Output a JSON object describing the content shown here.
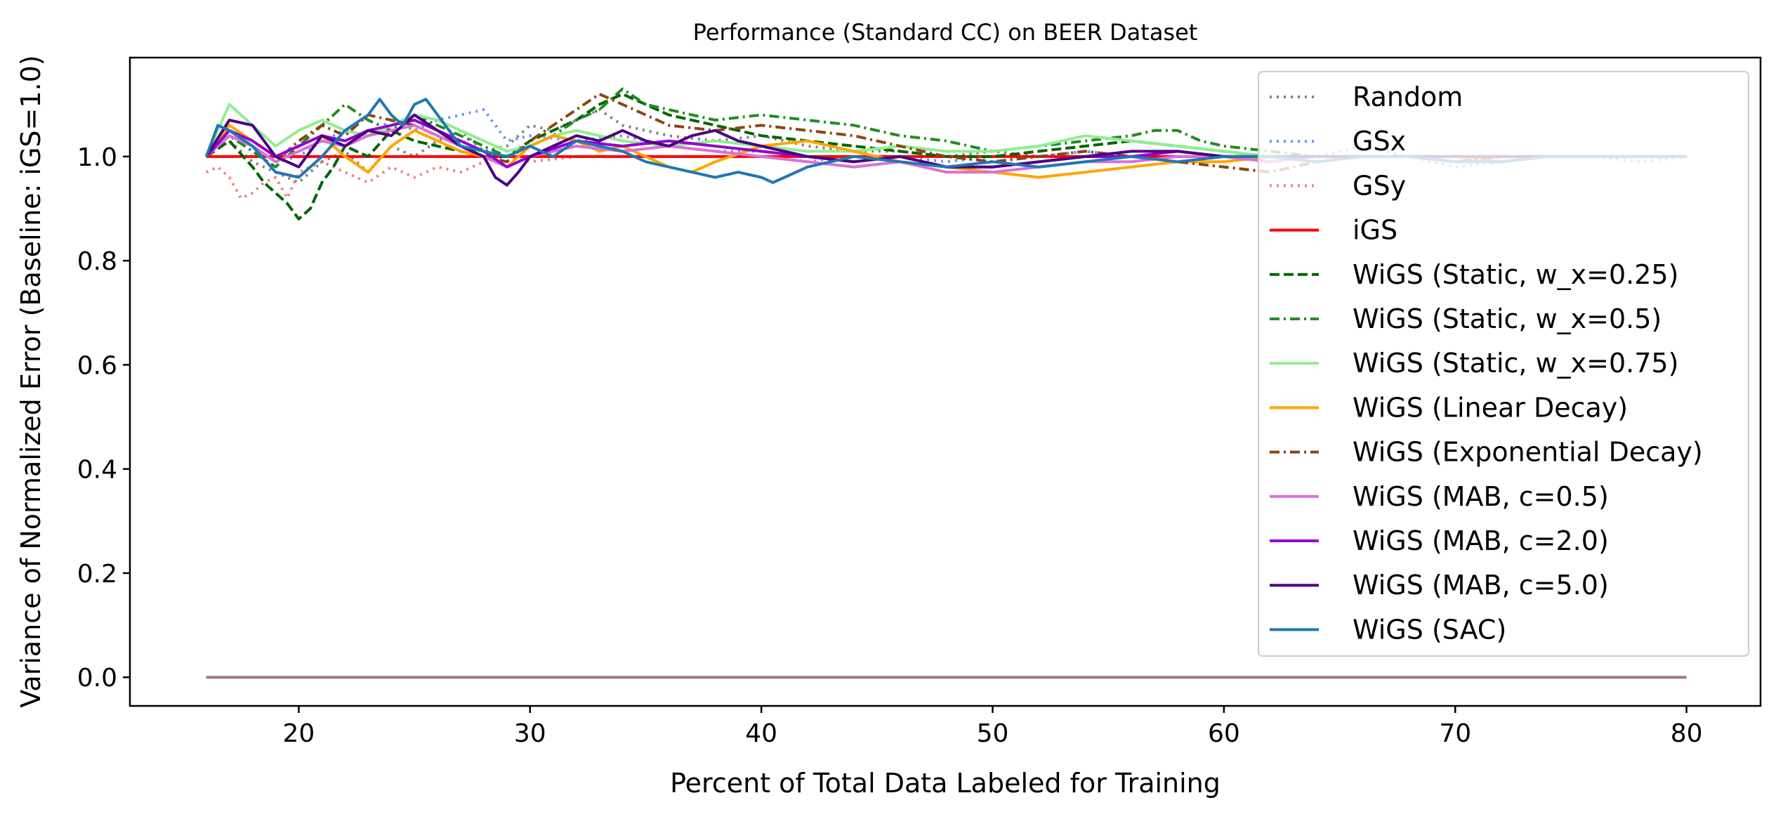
{
  "chart_data": {
    "type": "line",
    "title": "Performance (Standard CC) on BEER Dataset",
    "xlabel": "Percent of Total Data Labeled for Training",
    "ylabel": "Variance of Normalized Error (Baseline: iGS=1.0)",
    "xlim": [
      12.7,
      83.2
    ],
    "ylim": [
      -0.055,
      1.19
    ],
    "xticks": [
      20,
      30,
      40,
      50,
      60,
      70,
      80
    ],
    "xtick_labels": [
      "20",
      "30",
      "40",
      "50",
      "60",
      "70",
      "80"
    ],
    "yticks": [
      0.0,
      0.2,
      0.4,
      0.6,
      0.8,
      1.0
    ],
    "ytick_labels": [
      "0.0",
      "0.2",
      "0.4",
      "0.6",
      "0.8",
      "1.0"
    ],
    "grid": false,
    "legend_position": "upper-right",
    "series": [
      {
        "name": "Random",
        "color": "#808080",
        "dash": "dotted",
        "x": [
          16,
          17,
          18,
          19,
          20,
          21,
          22,
          23,
          24,
          25,
          26,
          27,
          28,
          29,
          30,
          31,
          32,
          33,
          34,
          36,
          38,
          40,
          42,
          44,
          46,
          48,
          50,
          52,
          54,
          56,
          58,
          60,
          62,
          64,
          66,
          68,
          70,
          72,
          74,
          76,
          78,
          80
        ],
        "y": [
          1.0,
          1.03,
          0.99,
          0.97,
          0.95,
          0.99,
          1.01,
          0.97,
          1.02,
          1.0,
          1.03,
          1.05,
          1.01,
          1.02,
          1.06,
          1.05,
          1.07,
          1.09,
          1.06,
          1.04,
          1.03,
          1.04,
          1.02,
          1.01,
          1.01,
          1.0,
          1.01,
          1.0,
          1.01,
          1.0,
          1.0,
          1.0,
          1.0,
          0.99,
          1.0,
          1.0,
          1.0,
          0.99,
          1.0,
          1.0,
          1.0,
          1.0
        ]
      },
      {
        "name": "GSx",
        "color": "#6495ED",
        "dash": "dotted",
        "x": [
          16,
          17,
          18,
          19,
          20,
          21,
          22,
          23,
          24,
          25,
          26,
          27,
          28,
          29,
          30,
          32,
          34,
          36,
          38,
          40,
          42,
          44,
          46,
          48,
          50,
          52,
          54,
          56,
          58,
          60,
          62,
          64,
          66,
          68,
          70,
          72,
          74,
          76,
          78,
          80
        ],
        "y": [
          1.0,
          1.05,
          1.02,
          0.99,
          1.0,
          1.03,
          1.05,
          1.04,
          1.07,
          1.05,
          1.07,
          1.08,
          1.09,
          1.03,
          1.04,
          1.03,
          1.04,
          1.02,
          1.01,
          1.01,
          1.0,
          1.0,
          1.0,
          0.99,
          1.0,
          1.0,
          1.01,
          1.0,
          1.0,
          1.0,
          0.99,
          1.0,
          1.02,
          1.0,
          0.98,
          0.99,
          1.0,
          1.0,
          0.99,
          1.0
        ]
      },
      {
        "name": "GSy",
        "color": "#F08080",
        "dash": "dotted",
        "x": [
          16,
          16.5,
          17,
          17.5,
          18,
          18.5,
          19,
          19.5,
          20,
          21,
          22,
          23,
          24,
          25,
          26,
          27,
          28,
          29,
          30,
          32,
          34,
          36,
          38,
          40,
          42,
          44,
          46,
          48,
          50,
          52,
          54,
          56,
          58,
          60,
          62,
          64,
          66,
          68,
          70,
          72,
          74,
          76,
          78,
          80
        ],
        "y": [
          0.97,
          0.98,
          0.96,
          0.92,
          0.93,
          0.95,
          0.96,
          0.92,
          0.97,
          0.99,
          0.97,
          0.95,
          0.98,
          0.96,
          0.98,
          0.97,
          0.99,
          1.0,
          0.99,
          1.0,
          1.0,
          1.0,
          1.0,
          1.0,
          0.99,
          1.0,
          1.0,
          1.0,
          1.0,
          1.0,
          1.0,
          1.0,
          1.0,
          1.0,
          1.0,
          1.0,
          1.0,
          1.0,
          1.0,
          1.0,
          1.0,
          1.0,
          1.0,
          1.0
        ]
      },
      {
        "name": "iGS",
        "color": "#FF0000",
        "dash": "solid",
        "x": [
          16,
          80
        ],
        "y": [
          1.0,
          1.0
        ]
      },
      {
        "name": "WiGS (Static, w_x=0.25)",
        "color": "#006400",
        "dash": "dashed",
        "x": [
          16,
          17,
          18,
          18.5,
          19,
          19.5,
          20,
          20.5,
          21,
          21.5,
          22,
          23,
          24,
          25,
          26,
          27,
          28,
          29,
          30,
          31,
          32,
          33,
          34,
          35,
          36,
          38,
          40,
          42,
          44,
          46,
          48,
          50,
          52,
          54,
          56,
          58,
          60,
          62,
          64,
          66,
          68,
          70,
          72,
          74,
          76,
          78,
          80
        ],
        "y": [
          1.0,
          1.03,
          0.98,
          0.95,
          0.93,
          0.91,
          0.88,
          0.9,
          0.95,
          0.98,
          1.02,
          1.0,
          1.05,
          1.03,
          1.02,
          1.01,
          1.0,
          1.0,
          1.03,
          1.05,
          1.07,
          1.1,
          1.12,
          1.1,
          1.08,
          1.06,
          1.04,
          1.03,
          1.02,
          1.01,
          1.0,
          1.0,
          1.01,
          1.02,
          1.03,
          1.02,
          1.01,
          1.0,
          1.0,
          1.0,
          1.0,
          0.99,
          1.0,
          1.0,
          1.0,
          1.0,
          1.0
        ]
      },
      {
        "name": "WiGS (Static, w_x=0.5)",
        "color": "#228B22",
        "dash": "dashdot",
        "x": [
          16,
          17,
          18,
          19,
          20,
          21,
          22,
          23,
          24,
          25,
          26,
          27,
          28,
          29,
          30,
          31,
          32,
          33,
          34,
          35,
          36,
          38,
          40,
          42,
          44,
          46,
          48,
          50,
          52,
          54,
          56,
          57,
          58,
          59,
          60,
          62,
          64,
          66,
          68,
          70,
          72,
          74,
          76,
          78,
          80
        ],
        "y": [
          1.0,
          1.04,
          1.01,
          0.98,
          1.02,
          1.06,
          1.1,
          1.07,
          1.05,
          1.08,
          1.06,
          1.04,
          1.02,
          1.0,
          1.02,
          1.04,
          1.07,
          1.09,
          1.13,
          1.1,
          1.09,
          1.07,
          1.08,
          1.07,
          1.06,
          1.04,
          1.03,
          1.01,
          1.02,
          1.03,
          1.04,
          1.05,
          1.05,
          1.03,
          1.02,
          1.01,
          1.0,
          1.0,
          1.0,
          1.0,
          0.99,
          1.0,
          1.0,
          1.0,
          1.0
        ]
      },
      {
        "name": "WiGS (Static, w_x=0.75)",
        "color": "#90EE90",
        "dash": "solid",
        "x": [
          16,
          17,
          18,
          19,
          20,
          21,
          22,
          23,
          24,
          25,
          26,
          27,
          28,
          29,
          30,
          31,
          32,
          34,
          36,
          38,
          40,
          42,
          44,
          46,
          48,
          50,
          52,
          54,
          56,
          58,
          60,
          62,
          64,
          66,
          68,
          70,
          72,
          74,
          76,
          78,
          80
        ],
        "y": [
          1.0,
          1.1,
          1.06,
          1.02,
          1.05,
          1.07,
          1.05,
          1.04,
          1.06,
          1.08,
          1.07,
          1.05,
          1.03,
          1.01,
          1.02,
          1.04,
          1.05,
          1.03,
          1.02,
          1.03,
          1.02,
          1.01,
          1.01,
          1.02,
          1.01,
          1.01,
          1.02,
          1.04,
          1.03,
          1.02,
          1.01,
          1.0,
          1.0,
          1.0,
          1.0,
          0.99,
          1.0,
          1.0,
          1.0,
          1.0,
          1.0
        ]
      },
      {
        "name": "WiGS (Linear Decay)",
        "color": "#FFA500",
        "dash": "solid",
        "x": [
          16,
          17,
          18,
          19,
          20,
          21,
          22,
          23,
          24,
          25,
          26,
          27,
          28,
          29,
          30,
          31,
          32,
          33,
          34,
          35,
          36,
          37,
          38,
          40,
          42,
          44,
          46,
          48,
          50,
          52,
          54,
          56,
          58,
          60,
          62,
          64,
          66,
          68,
          70,
          72,
          74,
          76,
          78,
          80
        ],
        "y": [
          1.0,
          1.06,
          1.03,
          1.0,
          1.02,
          1.04,
          1.0,
          0.97,
          1.02,
          1.05,
          1.03,
          1.01,
          1.0,
          0.98,
          1.02,
          1.04,
          1.03,
          1.01,
          1.02,
          1.0,
          0.98,
          0.97,
          0.99,
          1.02,
          1.03,
          1.01,
          0.99,
          0.98,
          0.97,
          0.96,
          0.97,
          0.98,
          0.99,
          0.99,
          1.0,
          1.0,
          1.0,
          1.0,
          1.0,
          0.99,
          1.0,
          1.0,
          1.0,
          1.0
        ]
      },
      {
        "name": "WiGS (Exponential Decay)",
        "color": "#8B4513",
        "dash": "dashdot",
        "x": [
          16,
          17,
          18,
          19,
          20,
          21,
          22,
          23,
          24,
          25,
          26,
          27,
          28,
          29,
          30,
          31,
          32,
          33,
          34,
          35,
          36,
          38,
          40,
          42,
          44,
          46,
          48,
          50,
          52,
          54,
          56,
          58,
          60,
          62,
          64,
          66,
          68,
          70,
          72,
          74,
          76,
          78,
          80
        ],
        "y": [
          1.0,
          1.05,
          1.02,
          0.99,
          1.03,
          1.06,
          1.04,
          1.08,
          1.07,
          1.06,
          1.04,
          1.02,
          1.0,
          0.99,
          1.03,
          1.06,
          1.09,
          1.12,
          1.1,
          1.08,
          1.06,
          1.05,
          1.06,
          1.05,
          1.04,
          1.02,
          1.0,
          0.99,
          1.0,
          1.01,
          1.0,
          0.99,
          0.98,
          0.97,
          0.99,
          1.0,
          1.0,
          0.99,
          1.0,
          1.0,
          1.0,
          1.0,
          1.0
        ]
      },
      {
        "name": "WiGS (MAB, c=0.5)",
        "color": "#DA70D6",
        "dash": "solid",
        "x": [
          16,
          17,
          18,
          19,
          20,
          21,
          22,
          23,
          24,
          25,
          26,
          27,
          28,
          29,
          30,
          32,
          34,
          36,
          38,
          40,
          42,
          44,
          46,
          48,
          50,
          52,
          54,
          56,
          58,
          60,
          62,
          64,
          66,
          68,
          70,
          72,
          74,
          76,
          78,
          80
        ],
        "y": [
          1.0,
          1.04,
          1.02,
          0.99,
          1.01,
          1.03,
          1.02,
          1.04,
          1.05,
          1.06,
          1.04,
          1.02,
          1.0,
          0.98,
          1.0,
          1.02,
          1.01,
          1.02,
          1.01,
          1.0,
          0.99,
          0.98,
          0.99,
          0.97,
          0.97,
          0.98,
          0.99,
          0.99,
          1.0,
          1.0,
          0.99,
          1.0,
          1.0,
          1.0,
          1.0,
          1.0,
          1.0,
          1.0,
          1.0,
          1.0
        ]
      },
      {
        "name": "WiGS (MAB, c=2.0)",
        "color": "#9400D3",
        "dash": "solid",
        "x": [
          16,
          17,
          18,
          19,
          20,
          21,
          22,
          23,
          24,
          25,
          26,
          27,
          28,
          29,
          30,
          32,
          34,
          36,
          38,
          40,
          42,
          44,
          46,
          48,
          50,
          52,
          54,
          56,
          58,
          60,
          62,
          64,
          66,
          68,
          70,
          72,
          74,
          76,
          78,
          80
        ],
        "y": [
          1.0,
          1.05,
          1.03,
          1.0,
          1.02,
          1.04,
          1.03,
          1.05,
          1.06,
          1.07,
          1.05,
          1.03,
          1.01,
          0.98,
          1.0,
          1.03,
          1.02,
          1.03,
          1.02,
          1.01,
          1.0,
          0.99,
          1.0,
          0.98,
          0.98,
          0.99,
          1.0,
          1.0,
          1.01,
          1.0,
          1.0,
          1.0,
          1.0,
          1.0,
          1.0,
          1.0,
          1.0,
          1.0,
          1.0,
          1.0
        ]
      },
      {
        "name": "WiGS (MAB, c=5.0)",
        "color": "#4B0082",
        "dash": "solid",
        "x": [
          16,
          17,
          18,
          19,
          20,
          21,
          22,
          23,
          24,
          25,
          26,
          27,
          28,
          28.5,
          29,
          29.5,
          30,
          31,
          32,
          33,
          34,
          35,
          36,
          37,
          38,
          39,
          40,
          42,
          44,
          46,
          48,
          50,
          52,
          54,
          56,
          58,
          60,
          62,
          64,
          66,
          68,
          70,
          72,
          74,
          76,
          78,
          80
        ],
        "y": [
          1.0,
          1.07,
          1.06,
          1.0,
          0.98,
          1.04,
          1.02,
          1.05,
          1.04,
          1.08,
          1.05,
          1.02,
          1.0,
          0.96,
          0.945,
          0.97,
          1.0,
          1.02,
          1.04,
          1.03,
          1.05,
          1.03,
          1.02,
          1.04,
          1.05,
          1.03,
          1.02,
          1.0,
          0.99,
          1.0,
          0.98,
          0.98,
          0.99,
          1.0,
          1.01,
          1.01,
          1.0,
          1.0,
          1.0,
          1.0,
          1.0,
          1.0,
          1.0,
          1.0,
          1.0,
          1.0,
          1.0
        ]
      },
      {
        "name": "WiGS (SAC)",
        "color": "#1F77B4",
        "dash": "solid",
        "x": [
          16,
          16.5,
          17,
          18,
          19,
          20,
          21,
          22,
          23,
          23.5,
          24,
          24.5,
          25,
          25.5,
          26,
          27,
          28,
          29,
          30,
          31,
          32,
          33,
          34,
          35,
          36,
          37,
          38,
          39,
          40,
          40.5,
          41,
          42,
          43,
          44,
          46,
          48,
          50,
          52,
          54,
          56,
          58,
          60,
          62,
          64,
          66,
          68,
          70,
          72,
          74,
          76,
          78,
          80
        ],
        "y": [
          1.0,
          1.06,
          1.05,
          1.02,
          0.97,
          0.96,
          1.0,
          1.05,
          1.08,
          1.11,
          1.08,
          1.06,
          1.1,
          1.11,
          1.08,
          1.02,
          1.01,
          1.0,
          1.02,
          1.0,
          1.03,
          1.02,
          1.01,
          0.99,
          0.98,
          0.97,
          0.96,
          0.97,
          0.96,
          0.95,
          0.96,
          0.98,
          0.99,
          1.0,
          0.99,
          0.98,
          0.99,
          0.98,
          0.99,
          1.0,
          0.99,
          1.0,
          1.0,
          0.99,
          1.0,
          1.0,
          0.99,
          0.99,
          1.0,
          1.0,
          1.0,
          1.0
        ]
      },
      {
        "color": "#A0787F",
        "dash": "solid",
        "x": [
          16,
          80
        ],
        "y": [
          0.0,
          0.0
        ]
      }
    ]
  }
}
